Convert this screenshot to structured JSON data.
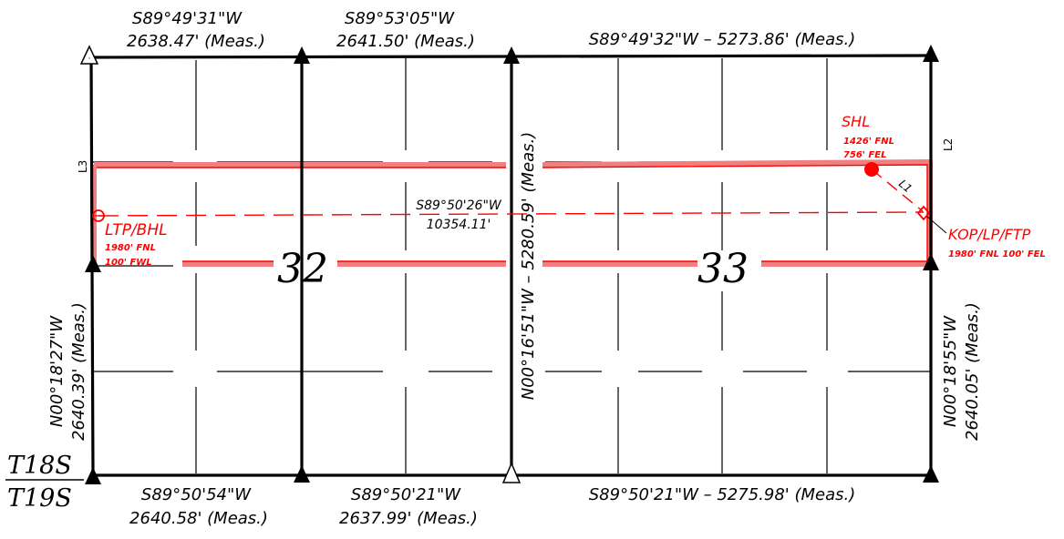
{
  "colors": {
    "line": "#000000",
    "survey": "#ff0000",
    "lease": "#f08080"
  },
  "sections": {
    "left": "32",
    "right": "33"
  },
  "township": {
    "north": "T18S",
    "south": "T19S"
  },
  "top_calls": {
    "left_bearing": "S89°49'31\"W",
    "left_distance": "2638.47' (Meas.)",
    "mid_bearing": "S89°53'05\"W",
    "mid_distance": "2641.50' (Meas.)",
    "right_call": "S89°49'32\"W – 5273.86' (Meas.)"
  },
  "bottom_calls": {
    "left_bearing": "S89°50'54\"W",
    "left_distance": "2640.58' (Meas.)",
    "mid_bearing": "S89°50'21\"W",
    "mid_distance": "2637.99' (Meas.)",
    "right_call": "S89°50'21\"W – 5275.98' (Meas.)"
  },
  "side_calls": {
    "west_bearing": "N00°18'27\"W",
    "west_distance": "2640.39' (Meas.)",
    "center_call": "N00°16'51\"W – 5280.59' (Meas.)",
    "east_bearing": "N00°18'55\"W",
    "east_distance": "2640.05' (Meas.)"
  },
  "lateral": {
    "bearing": "S89°50'26\"W",
    "distance": "10354.11'"
  },
  "line_labels": {
    "l1": "L1",
    "l2": "L2",
    "l3": "L3"
  },
  "shl": {
    "title": "SHL",
    "line1": "1426' FNL",
    "line2": "756' FEL"
  },
  "bhl": {
    "title": "LTP/BHL",
    "line1": "1980' FNL",
    "line2": "100' FWL"
  },
  "kop": {
    "title": "KOP/LP/FTP",
    "line1": "1980' FNL 100' FEL"
  }
}
